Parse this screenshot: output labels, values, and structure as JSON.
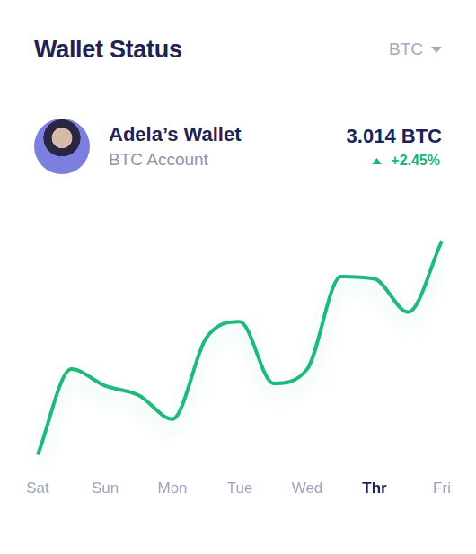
{
  "header": {
    "title": "Wallet Status",
    "currency_selector": "BTC"
  },
  "wallet": {
    "name": "Adela’s Wallet",
    "account": "BTC Account",
    "balance": "3.014 BTC",
    "change": "+2.45%"
  },
  "chart_data": {
    "type": "line",
    "categories": [
      "Sat",
      null,
      "Sun",
      null,
      "Mon",
      null,
      "Tue",
      null,
      "Wed",
      null,
      "Thr",
      null,
      "Fri"
    ],
    "values": [
      5,
      41,
      34,
      30,
      20,
      54,
      61,
      35,
      41,
      80,
      79,
      65,
      95
    ],
    "color": "#1dba7a",
    "ylim": [
      0,
      100
    ],
    "grid": false,
    "tick_labels": "x",
    "marker": "none",
    "line_style": "solid"
  }
}
